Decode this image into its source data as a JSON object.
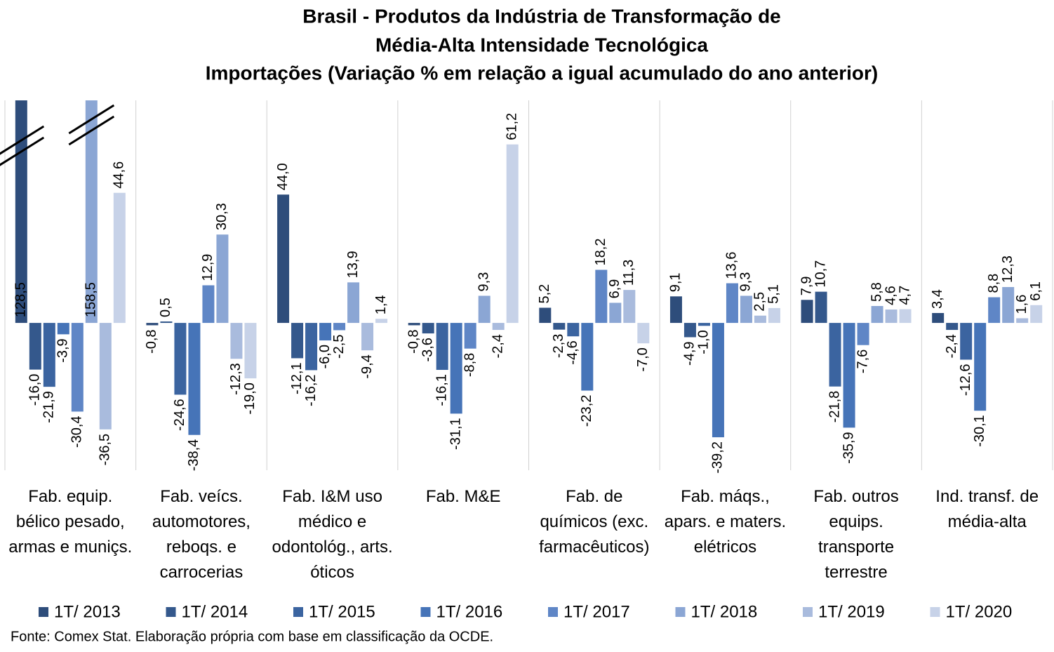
{
  "chart_data": {
    "type": "bar",
    "title": [
      "Brasil - Produtos da Indústria de Transformação de",
      "Média-Alta Intensidade Tecnológica"
    ],
    "subtitle": "Importações (Variação % em relação a igual acumulado do ano anterior)",
    "categories": [
      "Fab. equip. bélico pesado, armas e muniçs.",
      "Fab. veícs. automotores, reboqs. e carrocerias",
      "Fab. I&M uso médico e odontológ., arts. óticos",
      "Fab. M&E",
      "Fab. de químicos (exc. farmacêuticos)",
      "Fab. máqs., apars. e maters. elétricos",
      "Fab. outros equips. transporte terrestre",
      "Ind. transf. de média-alta"
    ],
    "series": [
      {
        "name": "1T/ 2013",
        "color": "#2e4d7b",
        "values": [
          128.5,
          -0.8,
          44.0,
          -0.8,
          5.2,
          9.1,
          7.9,
          3.4
        ],
        "value_labels": [
          "128,5",
          "-0,8",
          "44,0",
          "-0,8",
          "5,2",
          "9,1",
          "7,9",
          "3,4"
        ]
      },
      {
        "name": "1T/ 2014",
        "color": "#34588c",
        "values": [
          -16.0,
          0.5,
          -12.1,
          -3.6,
          -2.3,
          -4.9,
          10.7,
          -2.4
        ],
        "value_labels": [
          "-16,0",
          "0,5",
          "-12,1",
          "-3,6",
          "-2,3",
          "-4,9",
          "10,7",
          "-2,4"
        ]
      },
      {
        "name": "1T/ 2015",
        "color": "#3b64a0",
        "values": [
          -21.9,
          -24.6,
          -16.2,
          -16.1,
          -4.6,
          -1.0,
          -21.8,
          -12.6
        ],
        "value_labels": [
          "-21,9",
          "-24,6",
          "-16,2",
          "-16,1",
          "-4,6",
          "-1,0",
          "-21,8",
          "-12,6"
        ]
      },
      {
        "name": "1T/ 2016",
        "color": "#4674b8",
        "values": [
          -3.9,
          -38.4,
          -6.0,
          -31.1,
          -23.2,
          -39.2,
          -35.9,
          -30.1
        ],
        "value_labels": [
          "-3,9",
          "-38,4",
          "-6,0",
          "-31,1",
          "-23,2",
          "-39,2",
          "-35,9",
          "-30,1"
        ]
      },
      {
        "name": "1T/ 2017",
        "color": "#5f86c6",
        "values": [
          -30.4,
          12.9,
          -2.5,
          -8.8,
          18.2,
          13.6,
          -7.6,
          8.8
        ],
        "value_labels": [
          "-30,4",
          "12,9",
          "-2,5",
          "-8,8",
          "18,2",
          "13,6",
          "-7,6",
          "8,8"
        ]
      },
      {
        "name": "1T/ 2018",
        "color": "#8ba6d4",
        "values": [
          158.5,
          30.3,
          13.9,
          9.3,
          6.9,
          9.3,
          5.8,
          12.3
        ],
        "value_labels": [
          "158,5",
          "30,3",
          "13,9",
          "9,3",
          "6,9",
          "9,3",
          "5,8",
          "12,3"
        ]
      },
      {
        "name": "1T/ 2019",
        "color": "#a9bbdd",
        "values": [
          -36.5,
          -12.3,
          -9.4,
          -2.4,
          11.3,
          2.5,
          4.6,
          1.6
        ],
        "value_labels": [
          "-36,5",
          "-12,3",
          "-9,4",
          "-2,4",
          "11,3",
          "2,5",
          "4,6",
          "1,6"
        ]
      },
      {
        "name": "1T/ 2020",
        "color": "#c7d2e8",
        "values": [
          44.6,
          -19.0,
          1.4,
          61.2,
          -7.0,
          5.1,
          4.7,
          6.1
        ],
        "value_labels": [
          "44,6",
          "-19,0",
          "1,4",
          "61,2",
          "-7,0",
          "5,1",
          "4,7",
          "6,1"
        ]
      }
    ],
    "ylim": [
      -50.5,
      76.3
    ],
    "source": "Fonte: Comex Stat. Elaboração própria com base em classificação da OCDE."
  }
}
